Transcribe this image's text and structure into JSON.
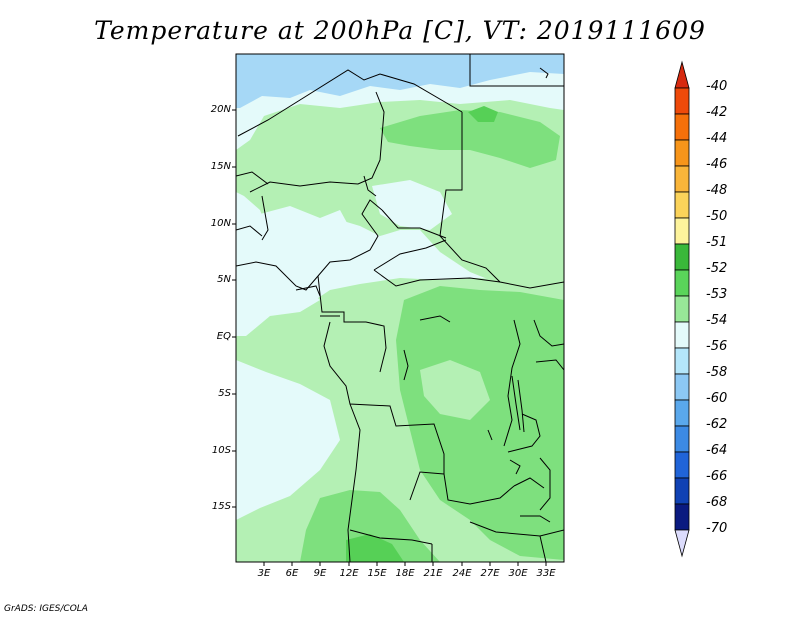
{
  "title": "Temperature at 200hPa [C], VT: 2019111609",
  "credit": "GrADS: IGES/COLA",
  "lat_labels": [
    "20N",
    "15N",
    "10N",
    "5N",
    "EQ",
    "5S",
    "10S",
    "15S"
  ],
  "lon_labels": [
    "3E",
    "6E",
    "9E",
    "12E",
    "15E",
    "18E",
    "21E",
    "24E",
    "27E",
    "30E",
    "33E"
  ],
  "colorbar": {
    "labels": [
      "-40",
      "-42",
      "-44",
      "-46",
      "-48",
      "-50",
      "-51",
      "-52",
      "-53",
      "-54",
      "-56",
      "-58",
      "-60",
      "-62",
      "-64",
      "-66",
      "-68",
      "-70"
    ],
    "colors": [
      "#d62a10",
      "#ee4a0a",
      "#f5700a",
      "#f7951a",
      "#f9b53a",
      "#fbd35a",
      "#fdf39c",
      "#3ab83a",
      "#5ad45a",
      "#98e898",
      "#e4fafa",
      "#b4e6fa",
      "#8cc8f4",
      "#5aa8ec",
      "#3c8ae4",
      "#2064d8",
      "#1042b4",
      "#0a1a80",
      "#dcdcfc"
    ]
  },
  "legend_colors": {
    "map_background": "#e4fafa",
    "upper_blue": "#a6d8f6",
    "light_green": "#b4f0b4",
    "medium_green": "#7ee07e",
    "dark_green": "#56d056"
  }
}
